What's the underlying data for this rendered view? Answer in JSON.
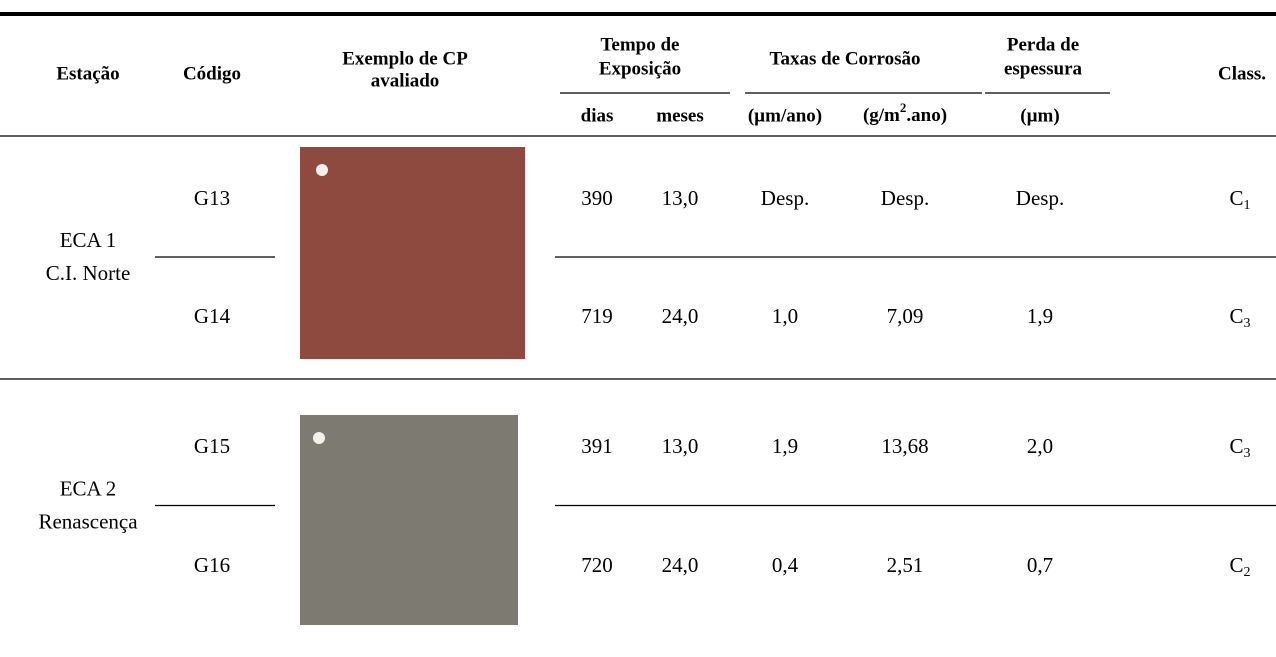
{
  "header": {
    "estacao": "Estação",
    "codigo": "Código",
    "exemplo": [
      "Exemplo de CP",
      "avaliado"
    ],
    "tempo": [
      "Tempo de",
      "Exposição"
    ],
    "taxas": "Taxas de Corrosão",
    "perda": [
      "Perda de",
      "espessura"
    ],
    "class": "Class.",
    "units": {
      "dias": "dias",
      "meses": "meses",
      "um_ano": "(µm/ano)",
      "g_m2": {
        "pre": "(g/m",
        "sup": "2",
        "post": ".ano)"
      },
      "um": "(µm)"
    }
  },
  "stations": [
    {
      "name": "ECA 1",
      "place": "C.I. Norte",
      "rows": [
        {
          "codigo": "G13",
          "dias": "390",
          "meses": "13,0",
          "taxa_um": "Desp.",
          "taxa_g": "Desp.",
          "perda": "Desp.",
          "class": {
            "base": "C",
            "sub": "1"
          }
        },
        {
          "codigo": "G14",
          "dias": "719",
          "meses": "24,0",
          "taxa_um": "1,0",
          "taxa_g": "7,09",
          "perda": "1,9",
          "class": {
            "base": "C",
            "sub": "3"
          }
        }
      ]
    },
    {
      "name": "ECA 2",
      "place": "Renascença",
      "rows": [
        {
          "codigo": "G15",
          "dias": "391",
          "meses": "13,0",
          "taxa_um": "1,9",
          "taxa_g": "13,68",
          "perda": "2,0",
          "class": {
            "base": "C",
            "sub": "3"
          }
        },
        {
          "codigo": "G16",
          "dias": "720",
          "meses": "24,0",
          "taxa_um": "0,4",
          "taxa_g": "2,51",
          "perda": "0,7",
          "class": {
            "base": "C",
            "sub": "2"
          }
        }
      ]
    }
  ]
}
